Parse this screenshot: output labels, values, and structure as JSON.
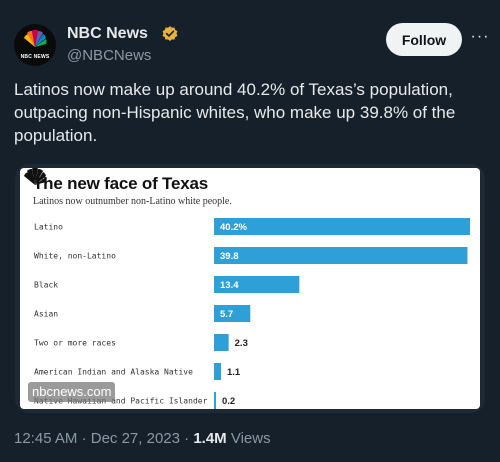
{
  "header": {
    "avatar_text": "NBC NEWS",
    "display_name": "NBC News",
    "handle": "@NBCNews",
    "follow_label": "Follow",
    "more_label": "···"
  },
  "tweet": {
    "text": "Latinos now make up around 40.2% of Texas’s population, outpacing non-Hispanic whites, who make up 39.8% of the population.",
    "time": "12:45 AM",
    "date": "Dec 27, 2023",
    "views_count": "1.4M",
    "views_label": "Views"
  },
  "card": {
    "watermark": "nbcnews.com"
  },
  "colors": {
    "background": "#15202b",
    "bar": "#2f9fd8",
    "verified": "#e8b33b"
  },
  "chart_data": {
    "type": "bar",
    "orientation": "horizontal",
    "title": "The new face of Texas",
    "subtitle": "Latinos now outnumber non-Latino white people.",
    "categories": [
      "Latino",
      "White, non-Latino",
      "Black",
      "Asian",
      "Two or more races",
      "American Indian and Alaska Native",
      "Native Hawaiian and Pacific Islander"
    ],
    "values": [
      40.2,
      39.8,
      13.4,
      5.7,
      2.3,
      1.1,
      0.2
    ],
    "value_labels": [
      "40.2%",
      "39.8",
      "13.4",
      "5.7",
      "2.3",
      "1.1",
      "0.2"
    ],
    "xlim": [
      0,
      40.2
    ]
  }
}
